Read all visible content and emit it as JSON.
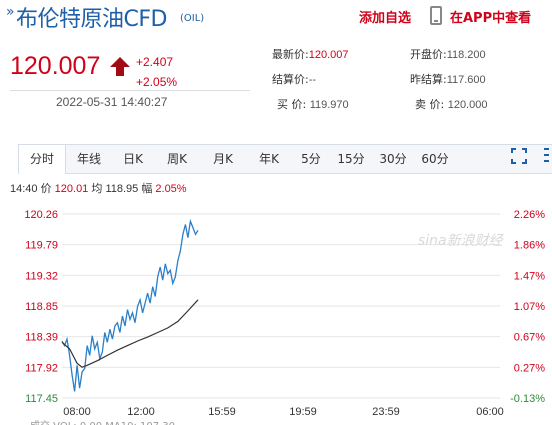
{
  "header": {
    "title_mark": "»",
    "title": "布伦特原油CFD",
    "code": "(OIL)",
    "add_favorite": "添加自选",
    "app_link": "在APP中查看"
  },
  "quote": {
    "price": "120.007",
    "change": "+2.407",
    "change_pct": "+2.05%",
    "datetime": "2022-05-31 14:40:27",
    "direction": "up",
    "up_color": "#d0021b"
  },
  "stats": {
    "latest_label": "最新价:",
    "latest_value": "120.007",
    "open_label": "开盘价:",
    "open_value": "118.200",
    "settle_label": "结算价:",
    "settle_value": "--",
    "prev_settle_label": "昨结算:",
    "prev_settle_value": "117.600",
    "bid_label": "买  价:",
    "bid_value": "119.970",
    "ask_label": "卖  价:",
    "ask_value": "120.000"
  },
  "tabs": [
    "分时",
    "年线",
    "日K",
    "周K",
    "月K",
    "年K",
    "5分",
    "15分",
    "30分",
    "60分"
  ],
  "active_tab": 0,
  "info_line": {
    "time": "14:40",
    "price_label": "价",
    "price": "120.01",
    "avg_label": "均",
    "avg": "118.95",
    "amp_label": "幅",
    "amp": "2.05%"
  },
  "watermark": "sina新浪财经",
  "chart_data": {
    "type": "line",
    "y_ticks": [
      "120.26",
      "119.79",
      "119.32",
      "118.85",
      "118.39",
      "117.92",
      "117.45"
    ],
    "y_right_ticks": [
      "2.26%",
      "1.86%",
      "1.47%",
      "1.07%",
      "0.67%",
      "0.27%",
      "-0.13%"
    ],
    "ylim": [
      117.45,
      120.26
    ],
    "x_ticks": [
      "08:00",
      "12:00",
      "15:59",
      "19:59",
      "23:59",
      "06:00"
    ],
    "series": [
      {
        "values": [
          [
            0,
            118.32
          ],
          [
            1,
            118.25
          ],
          [
            2,
            118.35
          ],
          [
            3,
            118.1
          ],
          [
            4,
            117.8
          ],
          [
            5,
            117.55
          ],
          [
            6,
            117.95
          ],
          [
            7,
            117.6
          ],
          [
            8,
            117.85
          ],
          [
            9,
            117.9
          ],
          [
            10,
            118.25
          ],
          [
            11,
            118.1
          ],
          [
            12,
            118.4
          ],
          [
            13,
            118.2
          ],
          [
            14,
            118.3
          ],
          [
            15,
            118.05
          ],
          [
            16,
            118.15
          ],
          [
            17,
            118.45
          ],
          [
            18,
            118.3
          ],
          [
            19,
            118.5
          ],
          [
            20,
            118.35
          ],
          [
            21,
            118.55
          ],
          [
            22,
            118.6
          ],
          [
            23,
            118.45
          ],
          [
            24,
            118.7
          ],
          [
            25,
            118.55
          ],
          [
            26,
            118.8
          ],
          [
            27,
            118.65
          ],
          [
            28,
            118.75
          ],
          [
            29,
            118.6
          ],
          [
            30,
            118.85
          ],
          [
            31,
            118.95
          ],
          [
            32,
            118.75
          ],
          [
            33,
            118.9
          ],
          [
            34,
            119.05
          ],
          [
            35,
            118.9
          ],
          [
            36,
            119.15
          ],
          [
            37,
            119.0
          ],
          [
            38,
            119.3
          ],
          [
            39,
            119.45
          ],
          [
            40,
            119.25
          ],
          [
            41,
            119.5
          ],
          [
            42,
            119.35
          ],
          [
            43,
            119.4
          ],
          [
            44,
            119.2
          ],
          [
            45,
            119.3
          ],
          [
            46,
            119.55
          ],
          [
            47,
            119.7
          ],
          [
            48,
            119.95
          ],
          [
            49,
            120.1
          ],
          [
            50,
            119.9
          ],
          [
            51,
            120.15
          ],
          [
            52,
            120.05
          ],
          [
            53,
            119.95
          ],
          [
            54,
            120.01
          ]
        ],
        "color": "#2a7fc9"
      },
      {
        "values": [
          [
            0,
            118.3
          ],
          [
            3,
            118.2
          ],
          [
            6,
            117.98
          ],
          [
            8,
            117.92
          ],
          [
            10,
            117.95
          ],
          [
            14,
            118.02
          ],
          [
            18,
            118.1
          ],
          [
            22,
            118.18
          ],
          [
            26,
            118.25
          ],
          [
            30,
            118.32
          ],
          [
            34,
            118.38
          ],
          [
            38,
            118.45
          ],
          [
            42,
            118.52
          ],
          [
            46,
            118.62
          ],
          [
            50,
            118.78
          ],
          [
            54,
            118.95
          ]
        ],
        "color": "#333333"
      }
    ],
    "colors": {
      "up": "#d0021b",
      "down": "#2e8b3a",
      "grid": "#e6e6e6"
    }
  },
  "bottom_line": "成交  VOL: 0.00    MA10: 107.30"
}
